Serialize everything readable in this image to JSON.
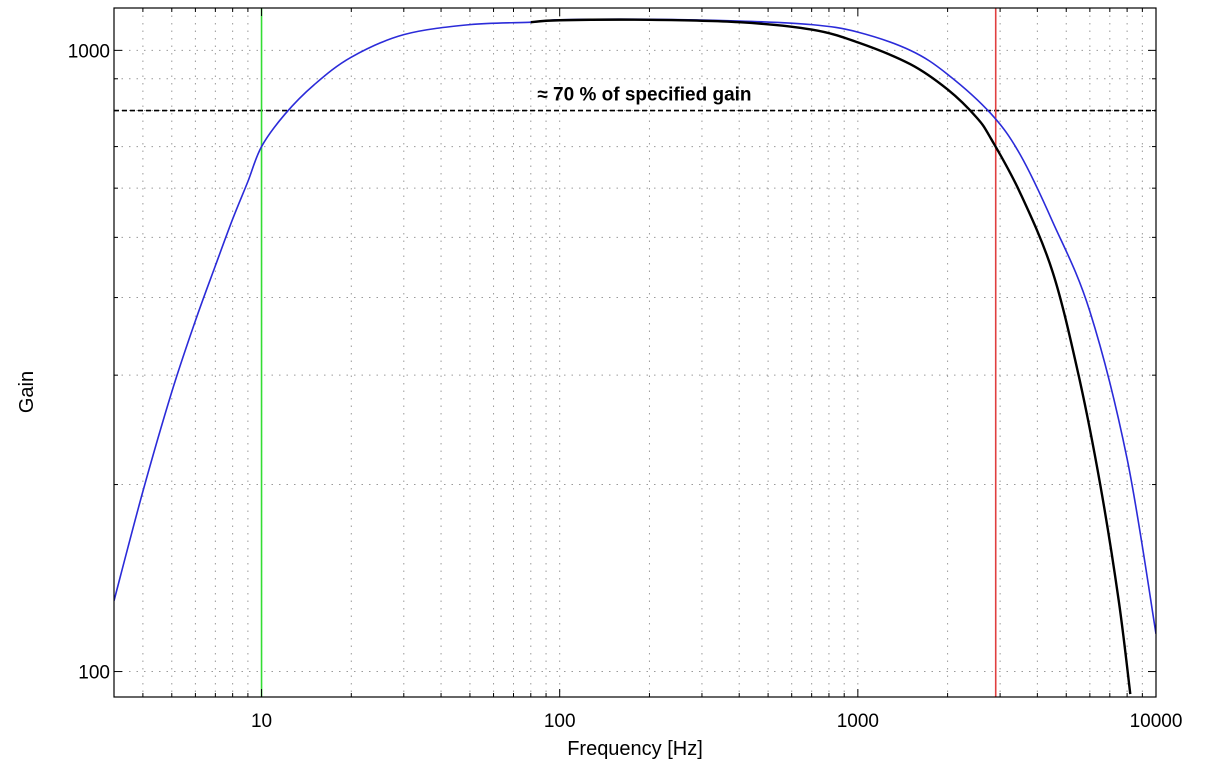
{
  "chart_data": {
    "type": "line",
    "title": "",
    "xlabel": "Frequency [Hz]",
    "ylabel": "Gain",
    "x_scale": "log",
    "y_scale": "log",
    "xlim": [
      3.2,
      10000
    ],
    "ylim": [
      91,
      1170
    ],
    "grid": true,
    "grid_style": "dotted",
    "x_ticks": [
      {
        "value": 10,
        "label": "10"
      },
      {
        "value": 100,
        "label": "100"
      },
      {
        "value": 1000,
        "label": "1000"
      },
      {
        "value": 10000,
        "label": "10000"
      }
    ],
    "y_ticks": [
      {
        "value": 100,
        "label": "100"
      },
      {
        "value": 1000,
        "label": "1000"
      }
    ],
    "series": [
      {
        "color": "#2b2bd9",
        "points": [
          [
            3.2,
            130
          ],
          [
            4,
            195
          ],
          [
            5,
            282
          ],
          [
            6,
            367
          ],
          [
            7,
            450
          ],
          [
            8,
            535
          ],
          [
            9,
            615
          ],
          [
            10,
            700
          ],
          [
            12,
            790
          ],
          [
            15,
            880
          ],
          [
            20,
            975
          ],
          [
            30,
            1060
          ],
          [
            50,
            1100
          ],
          [
            80,
            1110
          ],
          [
            100,
            1120
          ],
          [
            200,
            1122
          ],
          [
            400,
            1115
          ],
          [
            700,
            1100
          ],
          [
            1000,
            1070
          ],
          [
            1500,
            1000
          ],
          [
            2000,
            915
          ],
          [
            2800,
            790
          ],
          [
            3500,
            680
          ],
          [
            4500,
            530
          ],
          [
            6000,
            380
          ],
          [
            8000,
            220
          ],
          [
            10000,
            115
          ]
        ]
      },
      {
        "color": "#000000",
        "points": [
          [
            80,
            1110
          ],
          [
            100,
            1118
          ],
          [
            200,
            1120
          ],
          [
            400,
            1110
          ],
          [
            700,
            1080
          ],
          [
            1000,
            1030
          ],
          [
            1500,
            950
          ],
          [
            2000,
            865
          ],
          [
            2500,
            780
          ],
          [
            2800,
            720
          ],
          [
            3500,
            590
          ],
          [
            4500,
            440
          ],
          [
            5500,
            300
          ],
          [
            6500,
            200
          ],
          [
            7500,
            130
          ],
          [
            8200,
            92
          ]
        ]
      }
    ],
    "reference_lines": [
      {
        "orientation": "horizontal",
        "value": 800,
        "color": "#000000",
        "style": "dashed"
      },
      {
        "orientation": "vertical",
        "value": 10,
        "color": "#33dd33",
        "style": "solid"
      },
      {
        "orientation": "vertical",
        "value": 2900,
        "color": "#e04040",
        "style": "solid"
      }
    ],
    "annotations": [
      {
        "text": "≈ 70 % of specified gain",
        "x": 200,
        "y": 800
      }
    ]
  }
}
